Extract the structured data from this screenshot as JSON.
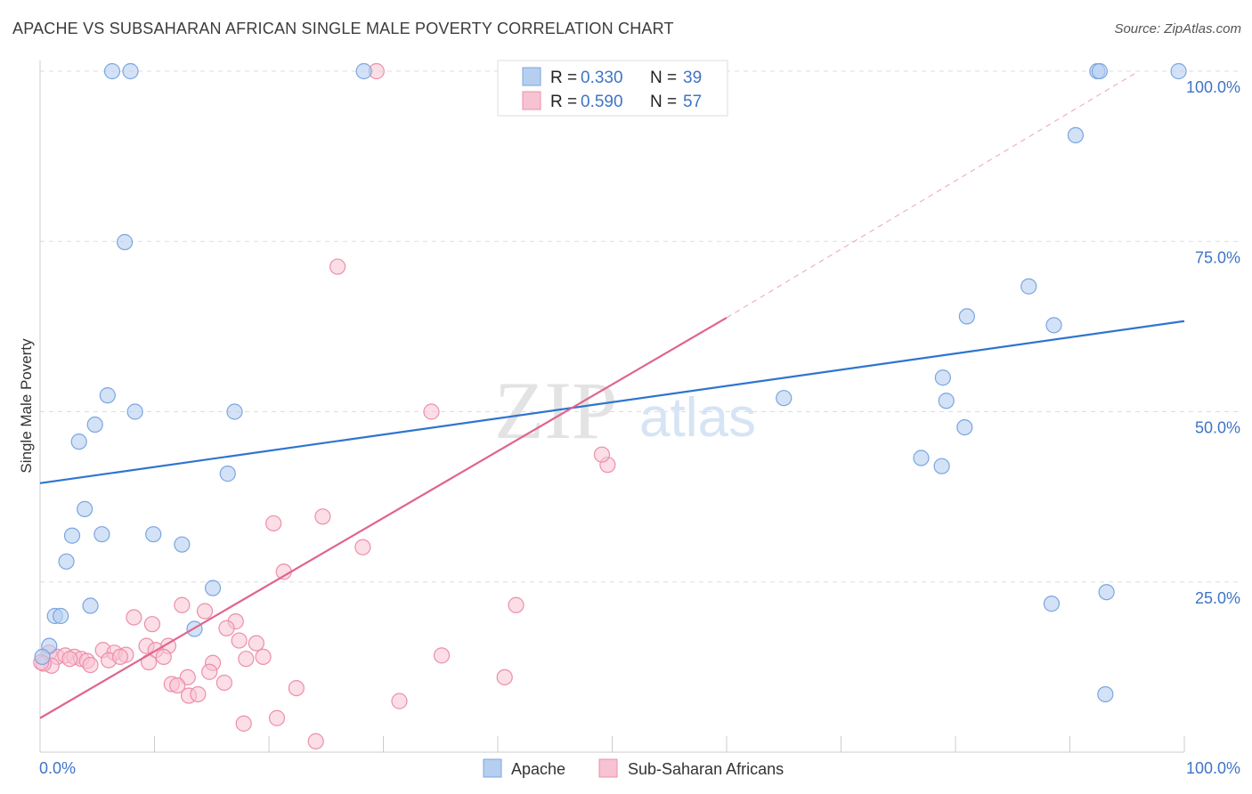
{
  "title": "APACHE VS SUBSAHARAN AFRICAN SINGLE MALE POVERTY CORRELATION CHART",
  "source": "Source: ZipAtlas.com",
  "watermark": {
    "zip": "ZIP",
    "atlas": "atlas"
  },
  "legend_top": [
    {
      "r_label": "R =",
      "r_value": "0.330",
      "n_label": "N =",
      "n_value": "39"
    },
    {
      "r_label": "R =",
      "r_value": "0.590",
      "n_label": "N =",
      "n_value": "57"
    }
  ],
  "legend_bottom": [
    "Apache",
    "Sub-Saharan Africans"
  ],
  "colors": {
    "apache_fill": "#b6cff0",
    "apache_stroke": "#7aa6e0",
    "apache_line": "#2f74d0",
    "ssa_fill": "#f7c3d2",
    "ssa_stroke": "#ec8fab",
    "ssa_line": "#e0648d",
    "tick_text": "#3f74c6",
    "grid": "#dddddd"
  },
  "chart_data": {
    "type": "scatter",
    "title": "APACHE VS SUBSAHARAN AFRICAN SINGLE MALE POVERTY CORRELATION CHART",
    "xlabel": "",
    "ylabel": "Single Male Poverty",
    "xlim": [
      0,
      100
    ],
    "ylim": [
      0,
      100
    ],
    "x_tick_labels": [
      "0.0%",
      "100.0%"
    ],
    "y_tick_labels": [
      "25.0%",
      "50.0%",
      "75.0%",
      "100.0%"
    ],
    "y_ticks": [
      25,
      50,
      75,
      100
    ],
    "grid": true,
    "legend_position": "top-center",
    "series": [
      {
        "name": "Apache",
        "R": 0.33,
        "N": 39,
        "trend": {
          "x": [
            0,
            100
          ],
          "y": [
            39.5,
            63.3
          ]
        },
        "points": [
          [
            6.3,
            100
          ],
          [
            7.9,
            100
          ],
          [
            28.3,
            100
          ],
          [
            92.4,
            100
          ],
          [
            92.6,
            100
          ],
          [
            99.5,
            100
          ],
          [
            90.5,
            90.6
          ],
          [
            7.4,
            74.9
          ],
          [
            86.4,
            68.4
          ],
          [
            81.0,
            64.0
          ],
          [
            88.6,
            62.7
          ],
          [
            5.9,
            52.4
          ],
          [
            8.3,
            50.0
          ],
          [
            17.0,
            50.0
          ],
          [
            65.0,
            52.0
          ],
          [
            78.9,
            55.0
          ],
          [
            79.2,
            51.6
          ],
          [
            80.8,
            47.7
          ],
          [
            4.8,
            48.1
          ],
          [
            3.4,
            45.6
          ],
          [
            77.0,
            43.2
          ],
          [
            78.8,
            42.0
          ],
          [
            16.4,
            40.9
          ],
          [
            3.9,
            35.7
          ],
          [
            2.8,
            31.8
          ],
          [
            5.4,
            32.0
          ],
          [
            9.9,
            32.0
          ],
          [
            12.4,
            30.5
          ],
          [
            2.3,
            28.0
          ],
          [
            15.1,
            24.1
          ],
          [
            93.2,
            23.5
          ],
          [
            88.4,
            21.8
          ],
          [
            4.4,
            21.5
          ],
          [
            1.3,
            20.0
          ],
          [
            1.8,
            20.0
          ],
          [
            13.5,
            18.1
          ],
          [
            0.8,
            15.6
          ],
          [
            0.2,
            14.0
          ],
          [
            93.1,
            8.5
          ]
        ]
      },
      {
        "name": "Sub-Saharan Africans",
        "R": 0.59,
        "N": 57,
        "trend": {
          "x": [
            0,
            60
          ],
          "y": [
            5.0,
            63.8
          ]
        },
        "trend_dashed": {
          "x": [
            60,
            96
          ],
          "y": [
            63.8,
            100
          ]
        },
        "points": [
          [
            29.4,
            100
          ],
          [
            55.4,
            100
          ],
          [
            26.0,
            71.3
          ],
          [
            34.2,
            50.0
          ],
          [
            49.6,
            42.2
          ],
          [
            49.1,
            43.7
          ],
          [
            24.7,
            34.6
          ],
          [
            20.4,
            33.6
          ],
          [
            28.2,
            30.1
          ],
          [
            21.3,
            26.5
          ],
          [
            41.6,
            21.6
          ],
          [
            12.4,
            21.6
          ],
          [
            14.4,
            20.7
          ],
          [
            8.2,
            19.8
          ],
          [
            9.8,
            18.8
          ],
          [
            17.1,
            19.2
          ],
          [
            16.3,
            18.2
          ],
          [
            11.2,
            15.6
          ],
          [
            17.4,
            16.4
          ],
          [
            18.9,
            16.0
          ],
          [
            9.3,
            15.6
          ],
          [
            10.1,
            15.0
          ],
          [
            5.5,
            15.0
          ],
          [
            6.5,
            14.6
          ],
          [
            7.5,
            14.3
          ],
          [
            0.8,
            14.6
          ],
          [
            1.5,
            14.0
          ],
          [
            2.2,
            14.2
          ],
          [
            3.0,
            14.0
          ],
          [
            3.6,
            13.7
          ],
          [
            4.1,
            13.4
          ],
          [
            6.0,
            13.5
          ],
          [
            2.6,
            13.7
          ],
          [
            1.0,
            12.7
          ],
          [
            0.3,
            13.0
          ],
          [
            4.4,
            12.8
          ],
          [
            7.0,
            14.0
          ],
          [
            10.8,
            14.0
          ],
          [
            18.0,
            13.7
          ],
          [
            19.5,
            14.0
          ],
          [
            15.1,
            13.1
          ],
          [
            9.5,
            13.2
          ],
          [
            35.1,
            14.2
          ],
          [
            14.8,
            11.8
          ],
          [
            12.9,
            11.0
          ],
          [
            40.6,
            11.0
          ],
          [
            11.5,
            10.0
          ],
          [
            12.0,
            9.8
          ],
          [
            16.1,
            10.2
          ],
          [
            22.4,
            9.4
          ],
          [
            13.0,
            8.3
          ],
          [
            13.8,
            8.5
          ],
          [
            31.4,
            7.5
          ],
          [
            20.7,
            5.0
          ],
          [
            17.8,
            4.2
          ],
          [
            24.1,
            1.6
          ],
          [
            0.1,
            13.2
          ]
        ]
      }
    ]
  }
}
